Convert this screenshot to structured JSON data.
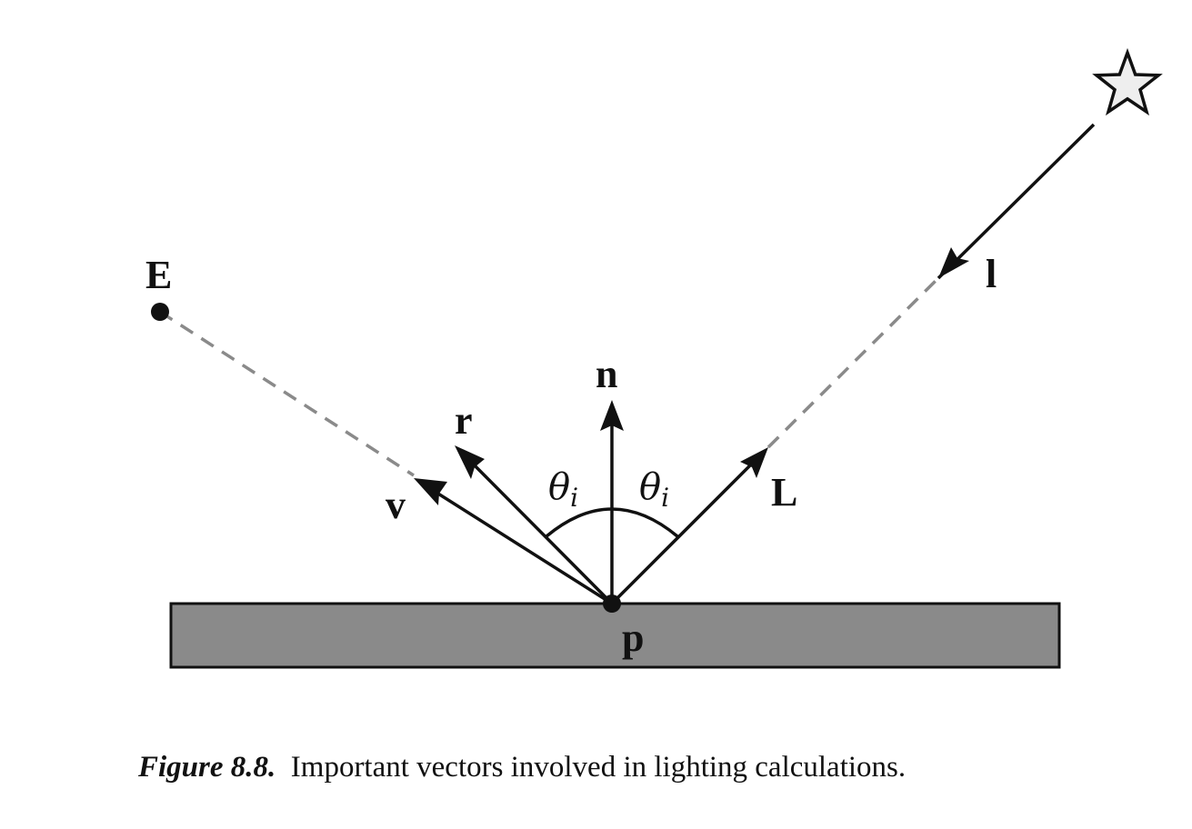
{
  "labels": {
    "E": "E",
    "l": "l",
    "n": "n",
    "r": "r",
    "v": "v",
    "L": "L",
    "p": "p",
    "theta": "θ",
    "theta_sub": "i"
  },
  "caption": {
    "label": "Figure 8.8.",
    "text": "Important vectors involved in lighting calculations."
  },
  "colors": {
    "ink": "#111111",
    "surface_fill": "#8a8a8a",
    "dashed_line": "#8a8a8a",
    "star_fill": "#eeeeee"
  }
}
